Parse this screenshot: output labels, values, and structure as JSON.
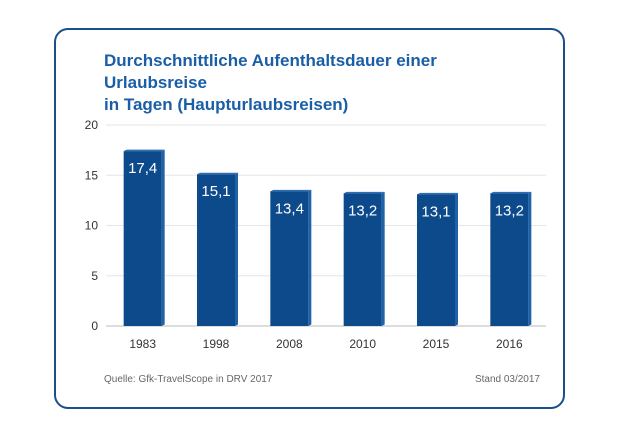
{
  "title_line1": "Durchschnittliche Aufenthaltsdauer einer Urlaubsreise",
  "title_line2": "in Tagen (Haupturlaubsreisen)",
  "source": "Quelle: Gfk-TravelScope in DRV 2017",
  "stand": "Stand 03/2017",
  "colors": {
    "bar_front": "#0d4a8c",
    "bar_side": "#1f62a8",
    "bar_top": "#2c6fb4",
    "title": "#1a5ea8",
    "border": "#1b4f8a"
  },
  "chart_data": {
    "type": "bar",
    "title": "Durchschnittliche Aufenthaltsdauer einer Urlaubsreise in Tagen (Haupturlaubsreisen)",
    "xlabel": "",
    "ylabel": "",
    "categories": [
      "1983",
      "1998",
      "2008",
      "2010",
      "2015",
      "2016"
    ],
    "values": [
      17.4,
      15.1,
      13.4,
      13.2,
      13.1,
      13.2
    ],
    "value_labels": [
      "17,4",
      "15,1",
      "13,4",
      "13,2",
      "13,1",
      "13,2"
    ],
    "yticks": [
      "0",
      "5",
      "10",
      "15",
      "20"
    ],
    "ylim": [
      0,
      20
    ],
    "grid": true,
    "legend": "none"
  }
}
